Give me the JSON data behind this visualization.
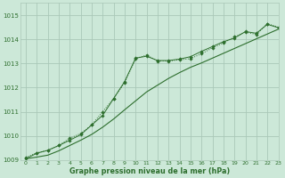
{
  "title": "Graphe pression niveau de la mer (hPa)",
  "background_color": "#cce8d8",
  "grid_color": "#aac8b8",
  "line_color": "#2d6e2d",
  "xlim": [
    -0.5,
    23
  ],
  "ylim": [
    1009.0,
    1015.5
  ],
  "yticks": [
    1009,
    1010,
    1011,
    1012,
    1013,
    1014,
    1015
  ],
  "xticks": [
    0,
    1,
    2,
    3,
    4,
    5,
    6,
    7,
    8,
    9,
    10,
    11,
    12,
    13,
    14,
    15,
    16,
    17,
    18,
    19,
    20,
    21,
    22,
    23
  ],
  "series_dotted_x": [
    0,
    1,
    2,
    3,
    4,
    5,
    6,
    7,
    8,
    9,
    10,
    11,
    12,
    13,
    14,
    15,
    16,
    17,
    18,
    19,
    20,
    21,
    22,
    23
  ],
  "series_dotted_y": [
    1009.1,
    1009.3,
    1009.4,
    1009.6,
    1009.9,
    1010.1,
    1010.45,
    1011.0,
    1011.55,
    1012.2,
    1013.2,
    1013.35,
    1013.1,
    1013.1,
    1013.15,
    1013.2,
    1013.4,
    1013.65,
    1013.85,
    1014.1,
    1014.3,
    1014.2,
    1014.65,
    1014.5
  ],
  "series_solid_x": [
    0,
    1,
    2,
    3,
    4,
    5,
    6,
    7,
    8,
    9,
    10,
    11,
    12,
    13,
    14,
    15,
    16,
    17,
    18,
    19,
    20,
    21,
    22,
    23
  ],
  "series_solid_y": [
    1009.05,
    1009.12,
    1009.2,
    1009.38,
    1009.6,
    1009.82,
    1010.06,
    1010.36,
    1010.7,
    1011.08,
    1011.45,
    1011.82,
    1012.1,
    1012.38,
    1012.62,
    1012.84,
    1013.02,
    1013.22,
    1013.42,
    1013.62,
    1013.82,
    1014.02,
    1014.22,
    1014.42
  ],
  "series_solid_markers_x": [
    0,
    1,
    2,
    3,
    4,
    5,
    6,
    7,
    8,
    9,
    10,
    11,
    12,
    13,
    14,
    15,
    16,
    17,
    18,
    19,
    20,
    21,
    22,
    23
  ],
  "series_solid_markers_y": [
    1009.05,
    1009.28,
    1009.4,
    1009.6,
    1009.82,
    1010.05,
    1010.45,
    1010.85,
    1011.55,
    1012.25,
    1013.22,
    1013.3,
    1013.12,
    1013.12,
    1013.18,
    1013.28,
    1013.5,
    1013.7,
    1013.9,
    1014.05,
    1014.32,
    1014.25,
    1014.62,
    1014.48
  ]
}
